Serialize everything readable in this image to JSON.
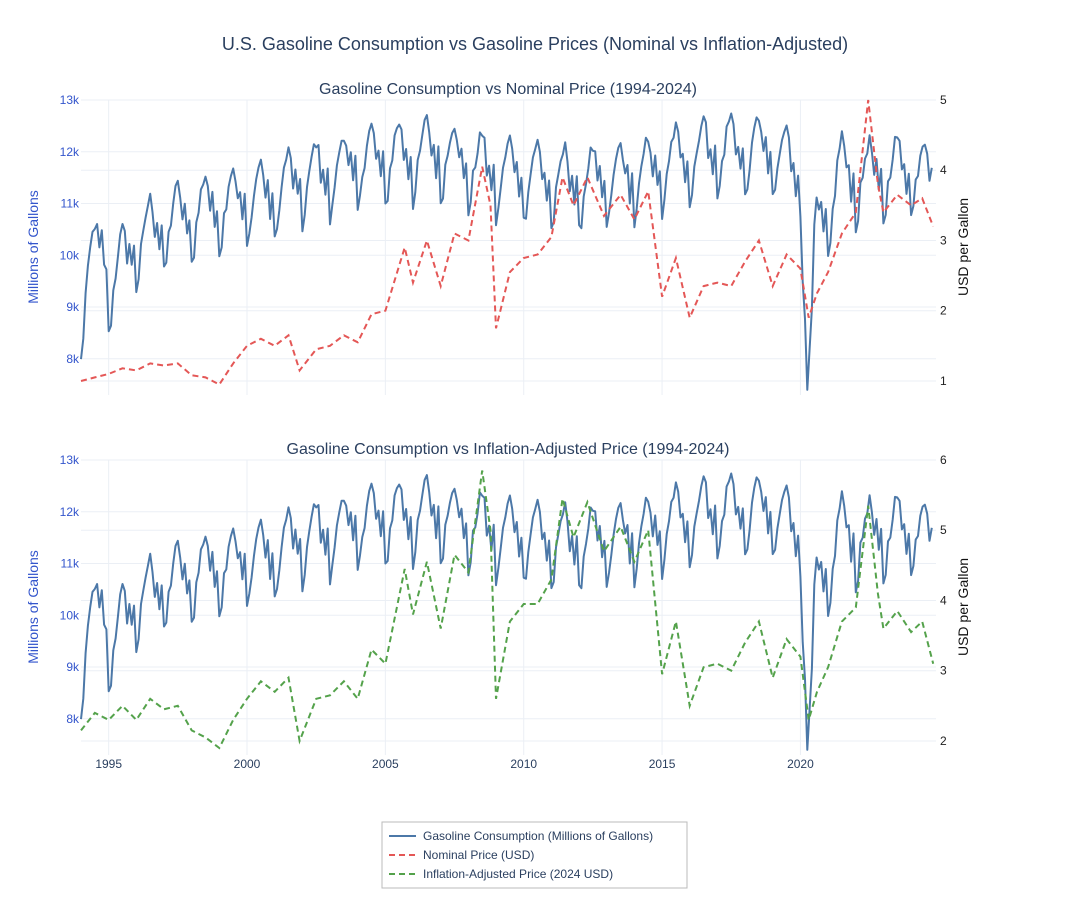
{
  "chart_data": {
    "title": "U.S. Gasoline Consumption vs Gasoline Prices (Nominal vs Inflation-Adjusted)",
    "x_ticks": [
      "1995",
      "2000",
      "2005",
      "2010",
      "2015",
      "2020"
    ],
    "legend": {
      "placement": "bottom-center",
      "items": [
        {
          "label": "Gasoline Consumption (Millions of Gallons)",
          "color": "#4c78a8",
          "dash": "solid"
        },
        {
          "label": "Nominal Price (USD)",
          "color": "#e45756",
          "dash": "dashed"
        },
        {
          "label": "Inflation-Adjusted Price (2024 USD)",
          "color": "#54a24b",
          "dash": "dashed"
        }
      ]
    },
    "consumption_anchors": [
      [
        1994.0,
        8800
      ],
      [
        1994.2,
        9500
      ],
      [
        1994.8,
        10200
      ],
      [
        1995.0,
        9300
      ],
      [
        1996.0,
        10200
      ],
      [
        1997.0,
        10500
      ],
      [
        1998.0,
        10700
      ],
      [
        1999.0,
        10900
      ],
      [
        2000.0,
        11000
      ],
      [
        2001.0,
        11100
      ],
      [
        2002.0,
        11400
      ],
      [
        2003.0,
        11500
      ],
      [
        2004.0,
        11700
      ],
      [
        2005.0,
        11800
      ],
      [
        2006.0,
        11850
      ],
      [
        2007.0,
        11900
      ],
      [
        2008.0,
        11700
      ],
      [
        2009.0,
        11500
      ],
      [
        2010.0,
        11500
      ],
      [
        2011.0,
        11350
      ],
      [
        2012.0,
        11300
      ],
      [
        2013.0,
        11350
      ],
      [
        2014.0,
        11450
      ],
      [
        2015.0,
        11600
      ],
      [
        2016.0,
        11850
      ],
      [
        2017.0,
        11950
      ],
      [
        2018.0,
        11950
      ],
      [
        2019.0,
        11900
      ],
      [
        2020.0,
        11500
      ],
      [
        2020.25,
        7400
      ],
      [
        2020.6,
        10700
      ],
      [
        2021.0,
        10700
      ],
      [
        2021.5,
        11600
      ],
      [
        2022.0,
        11400
      ],
      [
        2023.0,
        11500
      ],
      [
        2024.0,
        11600
      ],
      [
        2024.5,
        11500
      ]
    ],
    "subplots": [
      {
        "title": "Gasoline Consumption vs Nominal Price (1994-2024)",
        "left_axis": {
          "label": "Millions of Gallons",
          "range": [
            7300,
            13000
          ],
          "ticks": [
            8000,
            9000,
            10000,
            11000,
            12000,
            13000
          ],
          "tick_labels": [
            "8k",
            "9k",
            "10k",
            "11k",
            "12k",
            "13k"
          ]
        },
        "right_axis": {
          "label": "USD per Gallon",
          "range": [
            0.8,
            5.0
          ],
          "ticks": [
            1,
            2,
            3,
            4,
            5
          ],
          "tick_labels": [
            "1",
            "2",
            "3",
            "4",
            "5"
          ]
        },
        "price_series": {
          "name": "Nominal Price (USD)",
          "color": "#e45756",
          "points": [
            [
              1994.0,
              1.0
            ],
            [
              1994.5,
              1.05
            ],
            [
              1995.0,
              1.1
            ],
            [
              1995.5,
              1.18
            ],
            [
              1996.0,
              1.15
            ],
            [
              1996.5,
              1.25
            ],
            [
              1997.0,
              1.22
            ],
            [
              1997.5,
              1.25
            ],
            [
              1998.0,
              1.08
            ],
            [
              1998.5,
              1.05
            ],
            [
              1999.0,
              0.95
            ],
            [
              1999.5,
              1.25
            ],
            [
              2000.0,
              1.5
            ],
            [
              2000.5,
              1.6
            ],
            [
              2001.0,
              1.5
            ],
            [
              2001.5,
              1.65
            ],
            [
              2001.9,
              1.15
            ],
            [
              2002.5,
              1.45
            ],
            [
              2003.0,
              1.5
            ],
            [
              2003.5,
              1.65
            ],
            [
              2004.0,
              1.55
            ],
            [
              2004.5,
              1.95
            ],
            [
              2005.0,
              2.0
            ],
            [
              2005.7,
              2.9
            ],
            [
              2006.0,
              2.4
            ],
            [
              2006.5,
              3.0
            ],
            [
              2007.0,
              2.35
            ],
            [
              2007.5,
              3.1
            ],
            [
              2008.0,
              3.0
            ],
            [
              2008.5,
              4.05
            ],
            [
              2008.8,
              3.5
            ],
            [
              2009.0,
              1.75
            ],
            [
              2009.5,
              2.55
            ],
            [
              2010.0,
              2.75
            ],
            [
              2010.5,
              2.8
            ],
            [
              2011.0,
              3.05
            ],
            [
              2011.4,
              3.9
            ],
            [
              2011.8,
              3.5
            ],
            [
              2012.3,
              3.9
            ],
            [
              2012.9,
              3.35
            ],
            [
              2013.5,
              3.65
            ],
            [
              2014.0,
              3.3
            ],
            [
              2014.5,
              3.7
            ],
            [
              2015.0,
              2.2
            ],
            [
              2015.5,
              2.75
            ],
            [
              2016.0,
              1.9
            ],
            [
              2016.5,
              2.35
            ],
            [
              2017.0,
              2.4
            ],
            [
              2017.5,
              2.35
            ],
            [
              2018.0,
              2.7
            ],
            [
              2018.5,
              3.0
            ],
            [
              2019.0,
              2.35
            ],
            [
              2019.5,
              2.8
            ],
            [
              2020.0,
              2.6
            ],
            [
              2020.3,
              1.9
            ],
            [
              2020.6,
              2.25
            ],
            [
              2021.0,
              2.55
            ],
            [
              2021.5,
              3.1
            ],
            [
              2022.0,
              3.4
            ],
            [
              2022.45,
              5.0
            ],
            [
              2022.8,
              3.8
            ],
            [
              2023.0,
              3.4
            ],
            [
              2023.5,
              3.65
            ],
            [
              2024.0,
              3.5
            ],
            [
              2024.4,
              3.6
            ],
            [
              2024.8,
              3.2
            ]
          ]
        }
      },
      {
        "title": "Gasoline Consumption vs Inflation-Adjusted Price (1994-2024)",
        "left_axis": {
          "label": "Millions of Gallons",
          "range": [
            7300,
            13000
          ],
          "ticks": [
            8000,
            9000,
            10000,
            11000,
            12000,
            13000
          ],
          "tick_labels": [
            "8k",
            "9k",
            "10k",
            "11k",
            "12k",
            "13k"
          ]
        },
        "right_axis": {
          "label": "USD per Gallon",
          "range": [
            1.8,
            6.0
          ],
          "ticks": [
            2,
            3,
            4,
            5,
            6
          ],
          "tick_labels": [
            "2",
            "3",
            "4",
            "5",
            "6"
          ]
        },
        "price_series": {
          "name": "Inflation-Adjusted Price (2024 USD)",
          "color": "#54a24b",
          "points": [
            [
              1994.0,
              2.15
            ],
            [
              1994.5,
              2.4
            ],
            [
              1995.0,
              2.3
            ],
            [
              1995.5,
              2.5
            ],
            [
              1996.0,
              2.3
            ],
            [
              1996.5,
              2.6
            ],
            [
              1997.0,
              2.45
            ],
            [
              1997.5,
              2.5
            ],
            [
              1998.0,
              2.15
            ],
            [
              1998.5,
              2.05
            ],
            [
              1999.0,
              1.9
            ],
            [
              1999.5,
              2.3
            ],
            [
              2000.0,
              2.6
            ],
            [
              2000.5,
              2.85
            ],
            [
              2001.0,
              2.7
            ],
            [
              2001.5,
              2.9
            ],
            [
              2001.9,
              2.0
            ],
            [
              2002.5,
              2.6
            ],
            [
              2003.0,
              2.65
            ],
            [
              2003.5,
              2.85
            ],
            [
              2004.0,
              2.6
            ],
            [
              2004.5,
              3.3
            ],
            [
              2005.0,
              3.1
            ],
            [
              2005.7,
              4.45
            ],
            [
              2006.0,
              3.8
            ],
            [
              2006.5,
              4.55
            ],
            [
              2007.0,
              3.6
            ],
            [
              2007.5,
              4.65
            ],
            [
              2008.0,
              4.4
            ],
            [
              2008.5,
              5.85
            ],
            [
              2008.8,
              5.0
            ],
            [
              2009.0,
              2.6
            ],
            [
              2009.5,
              3.7
            ],
            [
              2010.0,
              3.95
            ],
            [
              2010.5,
              3.95
            ],
            [
              2011.0,
              4.3
            ],
            [
              2011.4,
              5.45
            ],
            [
              2011.8,
              4.9
            ],
            [
              2012.3,
              5.4
            ],
            [
              2012.9,
              4.7
            ],
            [
              2013.5,
              5.05
            ],
            [
              2014.0,
              4.55
            ],
            [
              2014.5,
              5.0
            ],
            [
              2015.0,
              2.95
            ],
            [
              2015.5,
              3.7
            ],
            [
              2016.0,
              2.5
            ],
            [
              2016.5,
              3.05
            ],
            [
              2017.0,
              3.1
            ],
            [
              2017.5,
              3.0
            ],
            [
              2018.0,
              3.4
            ],
            [
              2018.5,
              3.7
            ],
            [
              2019.0,
              2.9
            ],
            [
              2019.5,
              3.45
            ],
            [
              2020.0,
              3.2
            ],
            [
              2020.3,
              2.3
            ],
            [
              2020.6,
              2.7
            ],
            [
              2021.0,
              3.05
            ],
            [
              2021.5,
              3.7
            ],
            [
              2022.0,
              3.9
            ],
            [
              2022.45,
              5.35
            ],
            [
              2022.8,
              4.1
            ],
            [
              2023.0,
              3.6
            ],
            [
              2023.5,
              3.85
            ],
            [
              2024.0,
              3.55
            ],
            [
              2024.4,
              3.7
            ],
            [
              2024.8,
              3.1
            ]
          ]
        }
      }
    ]
  }
}
